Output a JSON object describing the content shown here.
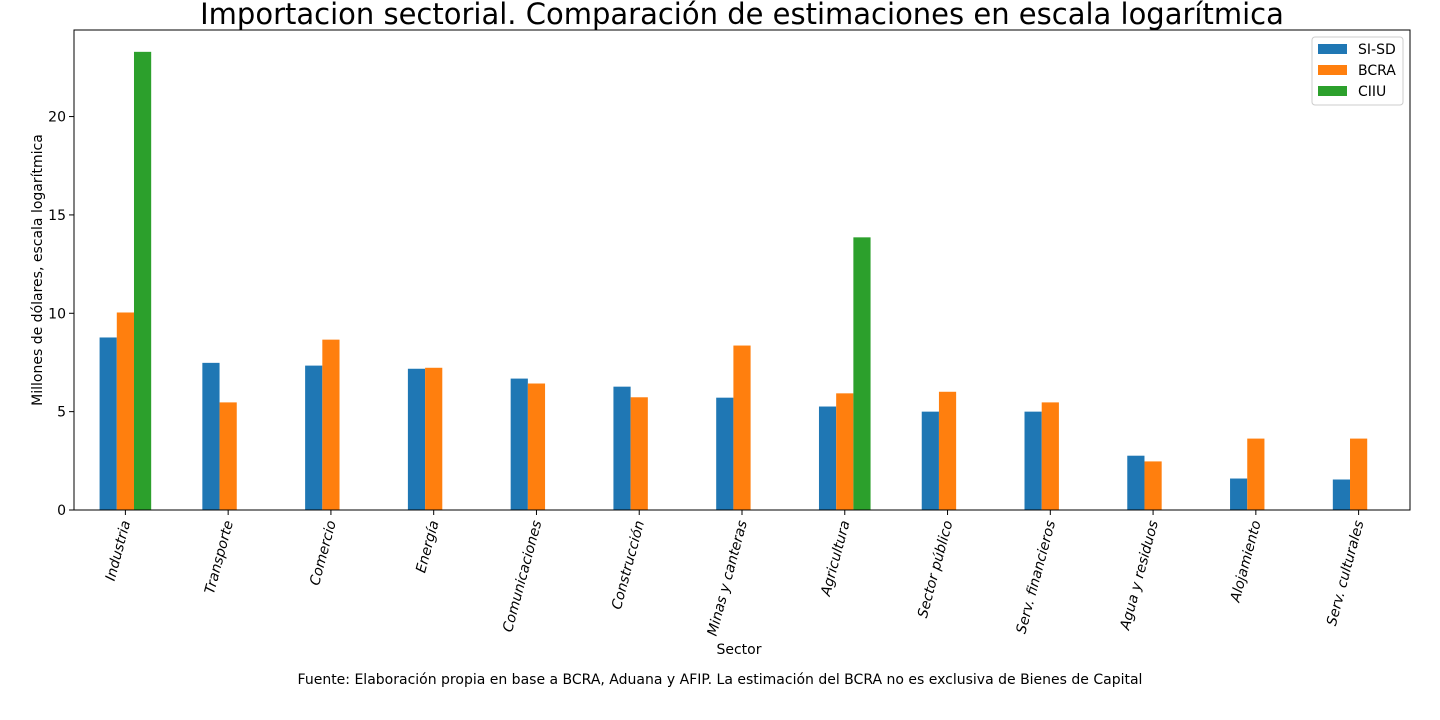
{
  "chart_data": {
    "type": "bar",
    "title": "Importacion sectorial. Comparación de estimaciones en escala logarítmica",
    "xlabel": "Sector",
    "ylabel": "Millones de dólares, escala logarítmica",
    "ylim": [
      0,
      24.4
    ],
    "yticks": [
      0,
      5,
      10,
      15,
      20
    ],
    "categories": [
      "Industria",
      "Transporte",
      "Comercio",
      "Energía",
      "Comunicaciones",
      "Construcción",
      "Minas y canteras",
      "Agricultura",
      "Sector público",
      "Serv. financieros",
      "Agua y residuos",
      "Alojamiento",
      "Serv. culturales"
    ],
    "series": [
      {
        "name": "SI-SD",
        "color": "#1f77b4",
        "values": [
          8.77,
          7.48,
          7.34,
          7.18,
          6.68,
          6.27,
          5.71,
          5.26,
          5.0,
          5.0,
          2.76,
          1.6,
          1.55
        ]
      },
      {
        "name": "BCRA",
        "color": "#ff7f0e",
        "values": [
          10.04,
          5.47,
          8.66,
          7.23,
          6.43,
          5.73,
          8.36,
          5.93,
          6.01,
          5.47,
          2.47,
          3.63,
          3.63
        ]
      },
      {
        "name": "CIIU",
        "color": "#2ca02c",
        "values": [
          23.29,
          null,
          null,
          null,
          null,
          null,
          null,
          13.86,
          null,
          null,
          null,
          null,
          null
        ]
      }
    ],
    "grid": false,
    "legend": "top-right",
    "footnote": "Fuente: Elaboración propia en base a BCRA, Aduana y AFIP. La estimación del BCRA no es exclusiva de Bienes de Capital"
  }
}
